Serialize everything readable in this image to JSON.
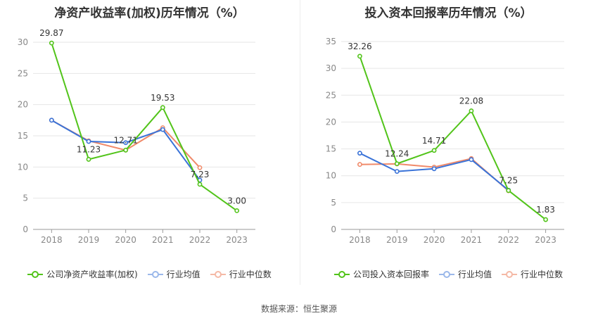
{
  "chart_data": [
    {
      "type": "line",
      "title": "净资产收益率(加权)历年情况（%）",
      "categories": [
        "2018",
        "2019",
        "2020",
        "2021",
        "2022",
        "2023"
      ],
      "ylim": [
        0,
        30
      ],
      "yticks": [
        0,
        5,
        10,
        15,
        20,
        25,
        30
      ],
      "grid": true,
      "legend_position": "bottom",
      "series": [
        {
          "name": "公司净资产收益率(加权)",
          "color": "#52c41a",
          "values": [
            29.87,
            11.23,
            12.71,
            19.53,
            7.23,
            3.0
          ],
          "labels": [
            "29.87",
            "11.23",
            "12.71",
            "19.53",
            "7.23",
            "3.00"
          ]
        },
        {
          "name": "行业均值",
          "color": "#3a73d8",
          "values": [
            17.5,
            14.1,
            13.9,
            16.0,
            7.9,
            null
          ]
        },
        {
          "name": "行业中位数",
          "color": "#f08a6a",
          "values": [
            17.5,
            14.2,
            12.7,
            16.3,
            9.9,
            null
          ]
        }
      ]
    },
    {
      "type": "line",
      "title": "投入资本回报率历年情况（%）",
      "categories": [
        "2018",
        "2019",
        "2020",
        "2021",
        "2022",
        "2023"
      ],
      "ylim": [
        0,
        35
      ],
      "yticks": [
        0,
        5,
        10,
        15,
        20,
        25,
        30,
        35
      ],
      "grid": true,
      "legend_position": "bottom",
      "series": [
        {
          "name": "公司投入资本回报率",
          "color": "#52c41a",
          "values": [
            32.26,
            12.24,
            14.71,
            22.08,
            7.25,
            1.83
          ],
          "labels": [
            "32.26",
            "12.24",
            "14.71",
            "22.08",
            "7.25",
            "1.83"
          ]
        },
        {
          "name": "行业均值",
          "color": "#3a73d8",
          "values": [
            14.2,
            10.8,
            11.3,
            13.0,
            7.3,
            null
          ]
        },
        {
          "name": "行业中位数",
          "color": "#f08a6a",
          "values": [
            12.1,
            12.2,
            11.6,
            13.2,
            7.2,
            null
          ]
        }
      ]
    }
  ],
  "source": "数据来源：恒生聚源"
}
